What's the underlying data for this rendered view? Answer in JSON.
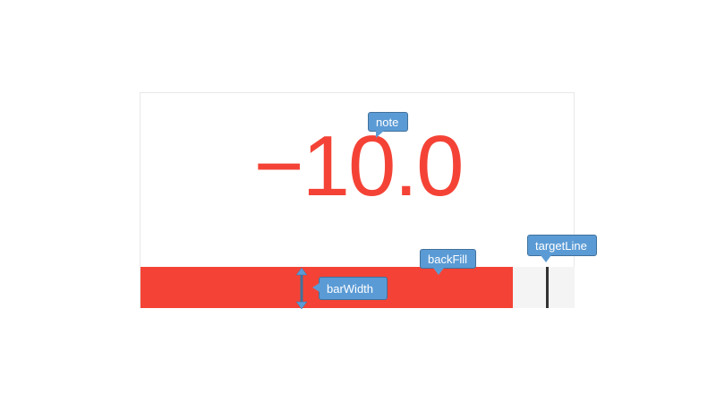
{
  "kpi": {
    "value_text": "−10.0",
    "color": "#f44336"
  },
  "bar": {
    "fill_fraction": 0.858,
    "target_fraction": 0.937,
    "fill_color": "#f44336",
    "track_color": "#f4f4f4"
  },
  "callouts": {
    "note": "note",
    "backFill": "backFill",
    "targetLine": "targetLine",
    "barWidth": "barWidth"
  },
  "callout_color": "#5b9bd5"
}
